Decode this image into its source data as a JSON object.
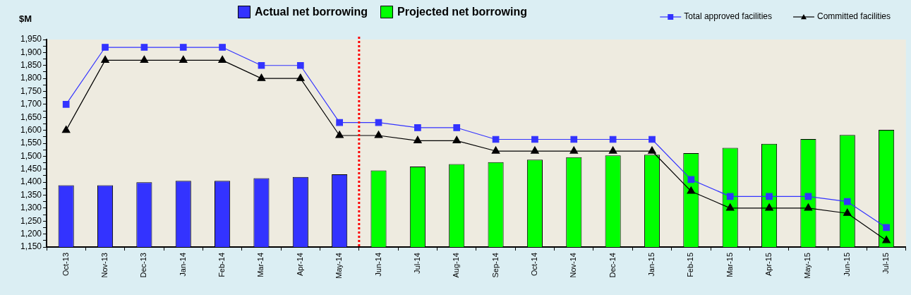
{
  "chart_data": {
    "type": "bar",
    "ylabel": "$M",
    "categories": [
      "Oct-13",
      "Nov-13",
      "Dec-13",
      "Jan-14",
      "Feb-14",
      "Mar-14",
      "Apr-14",
      "May-14",
      "Jun-14",
      "Jul-14",
      "Aug-14",
      "Sep-14",
      "Oct-14",
      "Nov-14",
      "Dec-14",
      "Jan-15",
      "Feb-15",
      "Mar-15",
      "Apr-15",
      "May-15",
      "Jun-15",
      "Jul-15"
    ],
    "series": [
      {
        "name": "Actual net borrowing",
        "type": "bar",
        "color": "#3333ff",
        "values": [
          1388,
          1388,
          1400,
          1405,
          1405,
          1415,
          1420,
          1430,
          null,
          null,
          null,
          null,
          null,
          null,
          null,
          null,
          null,
          null,
          null,
          null,
          null,
          null
        ]
      },
      {
        "name": "Projected net borrowing",
        "type": "bar",
        "color": "#00ff00",
        "values": [
          null,
          null,
          null,
          null,
          null,
          null,
          null,
          null,
          1445,
          1460,
          1470,
          1477,
          1487,
          1496,
          1503,
          1506,
          1512,
          1532,
          1548,
          1566,
          1582,
          1602
        ]
      },
      {
        "name": "Total approved facilities",
        "type": "line",
        "color": "#3333ff",
        "marker": "square",
        "values": [
          1700,
          1920,
          1920,
          1920,
          1920,
          1850,
          1850,
          1630,
          1630,
          1610,
          1610,
          1565,
          1565,
          1565,
          1565,
          1565,
          1410,
          1345,
          1345,
          1345,
          1325,
          1225
        ]
      },
      {
        "name": "Committed facilities",
        "type": "line",
        "color": "#000000",
        "marker": "triangle",
        "values": [
          1600,
          1870,
          1870,
          1870,
          1870,
          1800,
          1800,
          1580,
          1580,
          1560,
          1560,
          1520,
          1520,
          1520,
          1520,
          1520,
          1365,
          1300,
          1300,
          1300,
          1280,
          1175
        ]
      }
    ],
    "ylim": [
      1150,
      1950
    ],
    "yticks": [
      {
        "value": 1150,
        "label": "1,150"
      },
      {
        "value": 1175,
        "label": null
      },
      {
        "value": 1200,
        "label": "1,200"
      },
      {
        "value": 1225,
        "label": null
      },
      {
        "value": 1250,
        "label": "1,250"
      },
      {
        "value": 1275,
        "label": null
      },
      {
        "value": 1300,
        "label": "1,300"
      },
      {
        "value": 1325,
        "label": null
      },
      {
        "value": 1350,
        "label": "1,350"
      },
      {
        "value": 1375,
        "label": null
      },
      {
        "value": 1400,
        "label": "1,400"
      },
      {
        "value": 1425,
        "label": null
      },
      {
        "value": 1450,
        "label": "1,450"
      },
      {
        "value": 1475,
        "label": null
      },
      {
        "value": 1500,
        "label": "1,500"
      },
      {
        "value": 1525,
        "label": null
      },
      {
        "value": 1550,
        "label": "1,550"
      },
      {
        "value": 1575,
        "label": null
      },
      {
        "value": 1600,
        "label": "1,600"
      },
      {
        "value": 1625,
        "label": null
      },
      {
        "value": 1650,
        "label": "1,650"
      },
      {
        "value": 1675,
        "label": null
      },
      {
        "value": 1700,
        "label": "1,700"
      },
      {
        "value": 1725,
        "label": null
      },
      {
        "value": 1750,
        "label": "1,750"
      },
      {
        "value": 1775,
        "label": null
      },
      {
        "value": 1800,
        "label": "1,800"
      },
      {
        "value": 1825,
        "label": null
      },
      {
        "value": 1850,
        "label": "1,850"
      },
      {
        "value": 1875,
        "label": null
      },
      {
        "value": 1900,
        "label": "1,900"
      },
      {
        "value": 1925,
        "label": null
      },
      {
        "value": 1950,
        "label": "1,950"
      }
    ],
    "ref_lines": [
      {
        "axis": "x",
        "value": "Jun-14",
        "color": "#ff0000",
        "line_style": "dotted"
      }
    ],
    "legend": "top"
  }
}
